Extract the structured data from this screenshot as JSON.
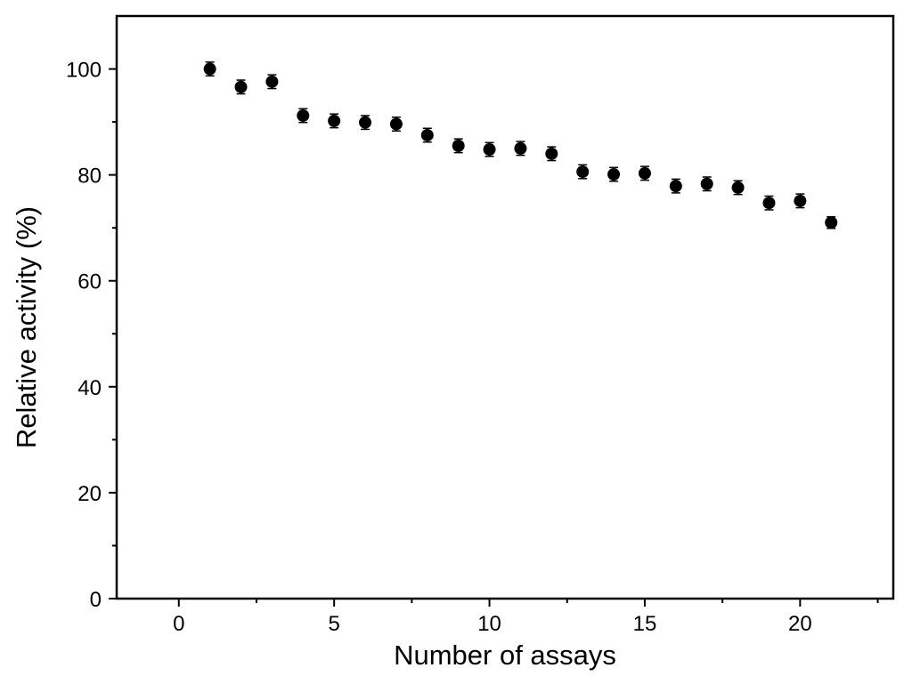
{
  "chart_data": {
    "type": "scatter",
    "x_label": "Number of assays",
    "y_label": "Relative activity (%)",
    "x": [
      1,
      2,
      3,
      4,
      5,
      6,
      7,
      8,
      9,
      10,
      11,
      12,
      13,
      14,
      15,
      16,
      17,
      18,
      19,
      20,
      21
    ],
    "series": [
      {
        "color": "#000000",
        "values": [
          100,
          96.6,
          97.6,
          91.2,
          90.2,
          89.9,
          89.6,
          87.5,
          85.5,
          84.8,
          85.0,
          84.0,
          80.6,
          80.1,
          80.3,
          77.9,
          78.3,
          77.6,
          74.7,
          75.1,
          71.0
        ],
        "errors": [
          1.3,
          1.3,
          1.3,
          1.3,
          1.3,
          1.3,
          1.3,
          1.3,
          1.3,
          1.3,
          1.3,
          1.3,
          1.3,
          1.3,
          1.3,
          1.3,
          1.3,
          1.3,
          1.3,
          1.3,
          1.1
        ]
      }
    ],
    "xlim": [
      -2,
      23
    ],
    "ylim": [
      0,
      110
    ],
    "xticks": [
      0,
      5,
      10,
      15,
      20
    ],
    "yticks": [
      0,
      20,
      40,
      60,
      80,
      100
    ],
    "xminorticks": [
      2.5,
      7.5,
      12.5,
      17.5,
      22.5
    ],
    "yminorticks": [
      10,
      30,
      50,
      70,
      90
    ],
    "grid": false
  }
}
